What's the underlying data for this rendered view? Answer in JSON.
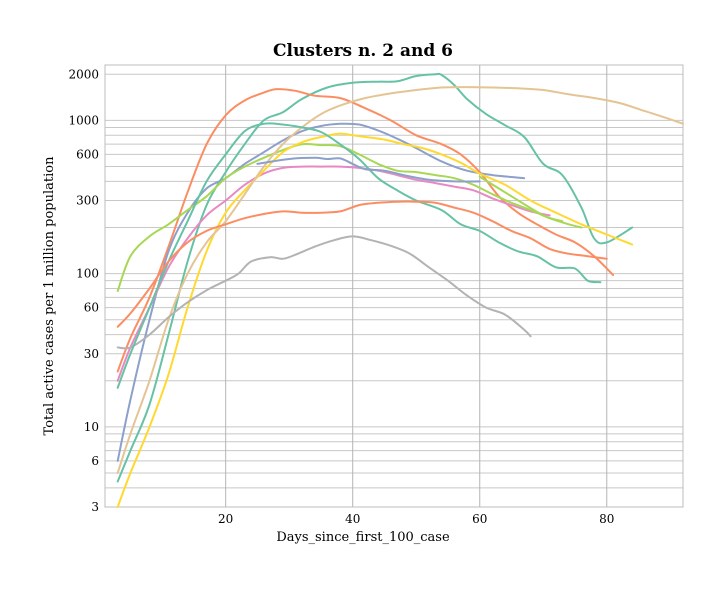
{
  "chart_data": {
    "type": "line",
    "title": "Clusters n. 2 and 6",
    "xlabel": "Days_since_first_100_case",
    "ylabel": "Total active cases per 1 million population",
    "yscale": "log",
    "xlim": [
      1,
      92
    ],
    "ylim": [
      3,
      2300
    ],
    "xticks": [
      20,
      40,
      60,
      80
    ],
    "yticks": [
      3,
      6,
      10,
      30,
      60,
      100,
      300,
      600,
      1000,
      2000
    ],
    "ytick_labels": [
      "3",
      "6",
      "10",
      "30",
      "60",
      "100",
      "300",
      "600",
      "1000",
      "2000"
    ],
    "grid": true,
    "legend": "none",
    "series": [
      {
        "color": "#66c2a5",
        "points": [
          [
            3,
            4.4
          ],
          [
            5,
            7
          ],
          [
            8,
            14
          ],
          [
            11,
            40
          ],
          [
            14,
            120
          ],
          [
            17,
            280
          ],
          [
            20,
            460
          ],
          [
            23,
            700
          ],
          [
            26,
            1000
          ],
          [
            29,
            1130
          ],
          [
            32,
            1380
          ],
          [
            36,
            1640
          ],
          [
            40,
            1760
          ],
          [
            44,
            1790
          ],
          [
            47,
            1800
          ],
          [
            50,
            1950
          ],
          [
            53,
            2000
          ],
          [
            54,
            1980
          ],
          [
            56,
            1700
          ],
          [
            58,
            1380
          ],
          [
            61,
            1100
          ],
          [
            64,
            930
          ],
          [
            67,
            780
          ],
          [
            70,
            520
          ],
          [
            73,
            440
          ],
          [
            76,
            270
          ],
          [
            78,
            170
          ],
          [
            80,
            160
          ],
          [
            84,
            200
          ]
        ]
      },
      {
        "color": "#fc8d62",
        "points": [
          [
            3,
            23
          ],
          [
            5,
            38
          ],
          [
            8,
            70
          ],
          [
            11,
            150
          ],
          [
            14,
            340
          ],
          [
            17,
            700
          ],
          [
            20,
            1080
          ],
          [
            23,
            1350
          ],
          [
            26,
            1520
          ],
          [
            28,
            1600
          ],
          [
            31,
            1560
          ],
          [
            34,
            1450
          ],
          [
            38,
            1400
          ],
          [
            42,
            1200
          ],
          [
            46,
            1000
          ],
          [
            50,
            800
          ],
          [
            54,
            700
          ],
          [
            57,
            600
          ],
          [
            60,
            460
          ],
          [
            63,
            320
          ],
          [
            66,
            250
          ],
          [
            69,
            210
          ],
          [
            72,
            180
          ],
          [
            75,
            160
          ],
          [
            78,
            130
          ],
          [
            81,
            98
          ]
        ]
      },
      {
        "color": "#8da0cb",
        "points": [
          [
            3,
            6
          ],
          [
            5,
            15
          ],
          [
            8,
            50
          ],
          [
            11,
            140
          ],
          [
            14,
            250
          ],
          [
            17,
            360
          ],
          [
            20,
            420
          ],
          [
            23,
            520
          ],
          [
            26,
            620
          ],
          [
            29,
            740
          ],
          [
            32,
            850
          ],
          [
            35,
            920
          ],
          [
            38,
            950
          ],
          [
            41,
            940
          ],
          [
            44,
            860
          ],
          [
            47,
            760
          ],
          [
            50,
            660
          ],
          [
            54,
            540
          ],
          [
            58,
            470
          ],
          [
            62,
            440
          ],
          [
            67,
            420
          ]
        ]
      },
      {
        "color": "#e78ac3",
        "points": [
          [
            3,
            20
          ],
          [
            5,
            33
          ],
          [
            8,
            60
          ],
          [
            11,
            110
          ],
          [
            14,
            170
          ],
          [
            17,
            240
          ],
          [
            20,
            300
          ],
          [
            23,
            380
          ],
          [
            26,
            450
          ],
          [
            29,
            490
          ],
          [
            32,
            500
          ],
          [
            35,
            500
          ],
          [
            38,
            500
          ],
          [
            41,
            490
          ],
          [
            44,
            470
          ],
          [
            47,
            440
          ],
          [
            50,
            410
          ],
          [
            53,
            390
          ],
          [
            56,
            370
          ],
          [
            59,
            350
          ],
          [
            62,
            310
          ],
          [
            65,
            280
          ],
          [
            68,
            255
          ],
          [
            71,
            240
          ]
        ]
      },
      {
        "color": "#a6d854",
        "points": [
          [
            3,
            77
          ],
          [
            5,
            130
          ],
          [
            8,
            175
          ],
          [
            11,
            210
          ],
          [
            14,
            260
          ],
          [
            17,
            320
          ],
          [
            20,
            420
          ],
          [
            23,
            500
          ],
          [
            26,
            570
          ],
          [
            29,
            640
          ],
          [
            32,
            700
          ],
          [
            35,
            690
          ],
          [
            38,
            680
          ],
          [
            41,
            600
          ],
          [
            44,
            520
          ],
          [
            47,
            470
          ],
          [
            50,
            460
          ],
          [
            53,
            440
          ],
          [
            56,
            420
          ],
          [
            59,
            380
          ],
          [
            62,
            330
          ],
          [
            65,
            290
          ],
          [
            68,
            260
          ],
          [
            71,
            230
          ],
          [
            74,
            210
          ],
          [
            76,
            200
          ]
        ]
      },
      {
        "color": "#ffd92f",
        "points": [
          [
            3,
            3
          ],
          [
            5,
            5
          ],
          [
            8,
            10
          ],
          [
            11,
            22
          ],
          [
            14,
            60
          ],
          [
            17,
            140
          ],
          [
            20,
            250
          ],
          [
            23,
            350
          ],
          [
            26,
            470
          ],
          [
            29,
            620
          ],
          [
            32,
            720
          ],
          [
            35,
            780
          ],
          [
            38,
            820
          ],
          [
            40,
            800
          ],
          [
            42,
            780
          ],
          [
            45,
            750
          ],
          [
            48,
            700
          ],
          [
            51,
            660
          ],
          [
            54,
            600
          ],
          [
            57,
            530
          ],
          [
            60,
            450
          ],
          [
            64,
            380
          ],
          [
            68,
            300
          ],
          [
            72,
            250
          ],
          [
            76,
            210
          ],
          [
            80,
            180
          ],
          [
            84,
            155
          ]
        ]
      },
      {
        "color": "#e5c494",
        "points": [
          [
            3,
            5
          ],
          [
            5,
            9
          ],
          [
            8,
            20
          ],
          [
            11,
            50
          ],
          [
            14,
            100
          ],
          [
            17,
            160
          ],
          [
            20,
            220
          ],
          [
            23,
            330
          ],
          [
            26,
            500
          ],
          [
            29,
            700
          ],
          [
            32,
            900
          ],
          [
            35,
            1100
          ],
          [
            38,
            1250
          ],
          [
            42,
            1400
          ],
          [
            46,
            1500
          ],
          [
            50,
            1580
          ],
          [
            54,
            1640
          ],
          [
            58,
            1650
          ],
          [
            62,
            1640
          ],
          [
            66,
            1620
          ],
          [
            70,
            1580
          ],
          [
            74,
            1480
          ],
          [
            78,
            1400
          ],
          [
            82,
            1300
          ],
          [
            86,
            1150
          ],
          [
            89,
            1050
          ],
          [
            92,
            950
          ]
        ]
      },
      {
        "color": "#b3b3b3",
        "points": [
          [
            3,
            33
          ],
          [
            5,
            33
          ],
          [
            8,
            40
          ],
          [
            11,
            52
          ],
          [
            14,
            65
          ],
          [
            17,
            78
          ],
          [
            20,
            90
          ],
          [
            22,
            100
          ],
          [
            24,
            120
          ],
          [
            27,
            128
          ],
          [
            29,
            125
          ],
          [
            31,
            133
          ],
          [
            34,
            150
          ],
          [
            37,
            165
          ],
          [
            40,
            175
          ],
          [
            43,
            165
          ],
          [
            46,
            152
          ],
          [
            49,
            135
          ],
          [
            52,
            110
          ],
          [
            55,
            90
          ],
          [
            58,
            72
          ],
          [
            61,
            60
          ],
          [
            64,
            54
          ],
          [
            67,
            43
          ],
          [
            68,
            39
          ]
        ]
      },
      {
        "color": "#66c2a5",
        "points": [
          [
            3,
            18
          ],
          [
            5,
            30
          ],
          [
            8,
            60
          ],
          [
            11,
            120
          ],
          [
            14,
            220
          ],
          [
            17,
            400
          ],
          [
            20,
            600
          ],
          [
            23,
            850
          ],
          [
            26,
            950
          ],
          [
            29,
            940
          ],
          [
            32,
            900
          ],
          [
            35,
            840
          ],
          [
            38,
            700
          ],
          [
            41,
            560
          ],
          [
            44,
            420
          ],
          [
            47,
            350
          ],
          [
            50,
            300
          ],
          [
            54,
            260
          ],
          [
            57,
            210
          ],
          [
            60,
            190
          ],
          [
            63,
            160
          ],
          [
            66,
            140
          ],
          [
            69,
            130
          ],
          [
            72,
            110
          ],
          [
            75,
            108
          ],
          [
            77,
            90
          ],
          [
            79,
            88
          ]
        ]
      },
      {
        "color": "#fc8d62",
        "points": [
          [
            3,
            45
          ],
          [
            5,
            55
          ],
          [
            8,
            80
          ],
          [
            11,
            120
          ],
          [
            14,
            160
          ],
          [
            17,
            190
          ],
          [
            20,
            210
          ],
          [
            23,
            230
          ],
          [
            26,
            245
          ],
          [
            29,
            255
          ],
          [
            32,
            250
          ],
          [
            35,
            250
          ],
          [
            38,
            255
          ],
          [
            41,
            280
          ],
          [
            44,
            290
          ],
          [
            47,
            295
          ],
          [
            50,
            295
          ],
          [
            53,
            290
          ],
          [
            56,
            270
          ],
          [
            59,
            250
          ],
          [
            62,
            220
          ],
          [
            65,
            190
          ],
          [
            68,
            170
          ],
          [
            71,
            145
          ],
          [
            74,
            135
          ],
          [
            77,
            130
          ],
          [
            80,
            125
          ]
        ]
      },
      {
        "color": "#a6d854",
        "points": [
          [
            60,
            430
          ],
          [
            65,
            320
          ],
          [
            70,
            240
          ],
          [
            73,
            220
          ]
        ]
      },
      {
        "color": "#8da0cb",
        "points": [
          [
            25,
            520
          ],
          [
            30,
            560
          ],
          [
            34,
            570
          ],
          [
            36,
            560
          ],
          [
            38,
            565
          ],
          [
            40,
            520
          ],
          [
            42,
            480
          ],
          [
            45,
            470
          ],
          [
            48,
            440
          ],
          [
            52,
            410
          ],
          [
            56,
            400
          ],
          [
            60,
            400
          ]
        ]
      }
    ]
  }
}
